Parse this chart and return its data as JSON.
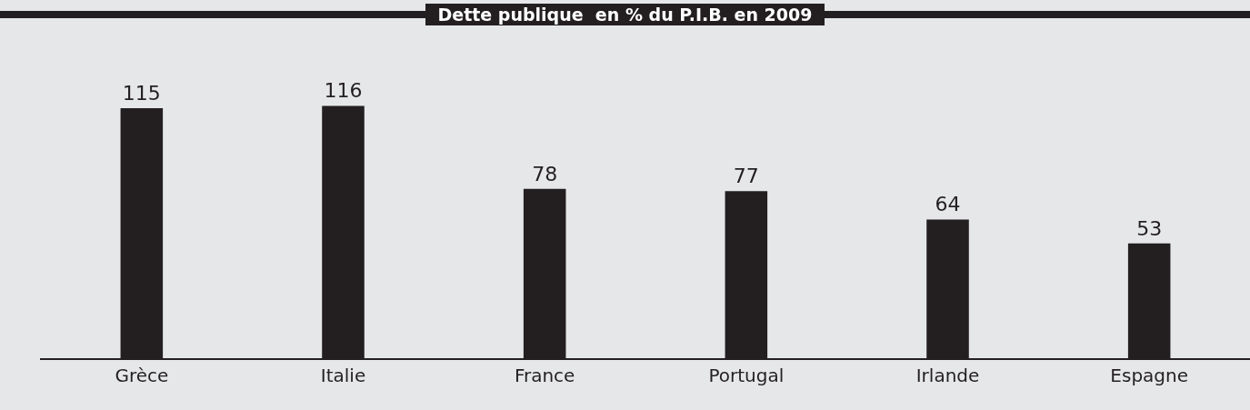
{
  "chart_data": {
    "type": "bar",
    "title": "Dette publique  en % du P.I.B. en 2009",
    "categories": [
      "Grèce",
      "Italie",
      "France",
      "Portugal",
      "Irlande",
      "Espagne"
    ],
    "values": [
      115,
      116,
      78,
      77,
      64,
      53
    ],
    "color": "#231f20",
    "data_labels": true,
    "grid": false,
    "legend": false
  }
}
